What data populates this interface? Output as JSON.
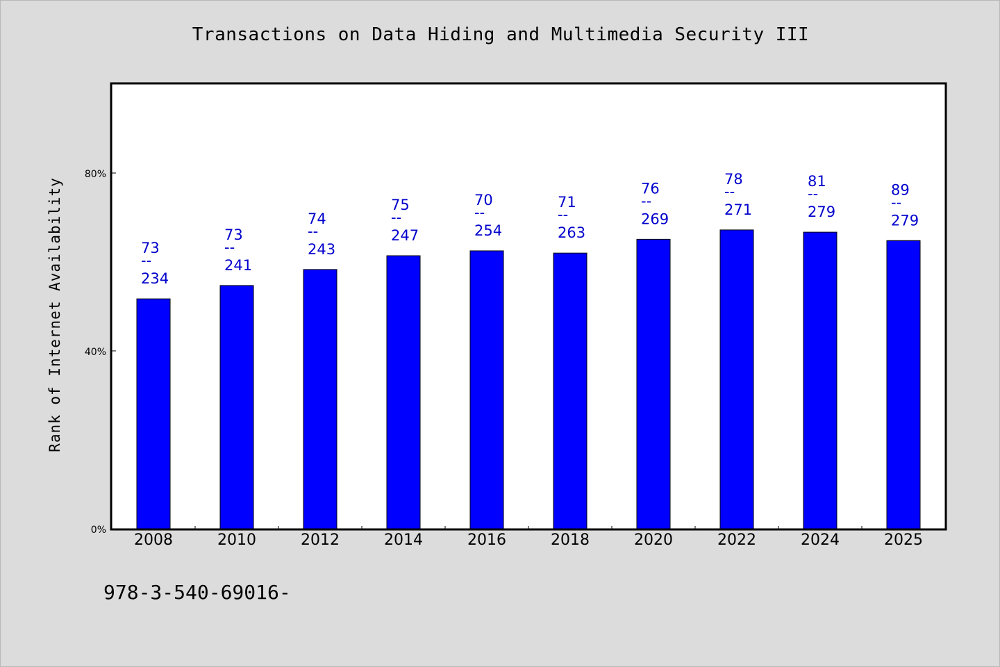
{
  "chart_data": {
    "type": "bar",
    "title": "Transactions on Data Hiding and Multimedia Security III",
    "xlabel": "",
    "ylabel": "Rank of Internet Availability",
    "categories": [
      "2008",
      "2010",
      "2012",
      "2014",
      "2016",
      "2018",
      "2020",
      "2022",
      "2024",
      "2025"
    ],
    "values": [
      51.7,
      54.7,
      58.3,
      61.4,
      62.5,
      62.0,
      65.1,
      67.2,
      66.7,
      64.8
    ],
    "value_unit": "%",
    "annotations": [
      [
        "73",
        "--",
        "234"
      ],
      [
        "73",
        "--",
        "241"
      ],
      [
        "74",
        "--",
        "243"
      ],
      [
        "75",
        "--",
        "247"
      ],
      [
        "70",
        "--",
        "254"
      ],
      [
        "71",
        "--",
        "263"
      ],
      [
        "76",
        "--",
        "269"
      ],
      [
        "78",
        "--",
        "271"
      ],
      [
        "81",
        "--",
        "279"
      ],
      [
        "89",
        "--",
        "279"
      ]
    ],
    "ylim": [
      0,
      100
    ],
    "yticks": [
      0,
      40,
      80
    ],
    "ytick_labels": [
      "0%",
      "40%",
      "80%"
    ],
    "bar_color": "#0000ff",
    "annotation_color": "#0000cc",
    "grid": false,
    "legend": "none"
  },
  "footnote": "978-3-540-69016-"
}
